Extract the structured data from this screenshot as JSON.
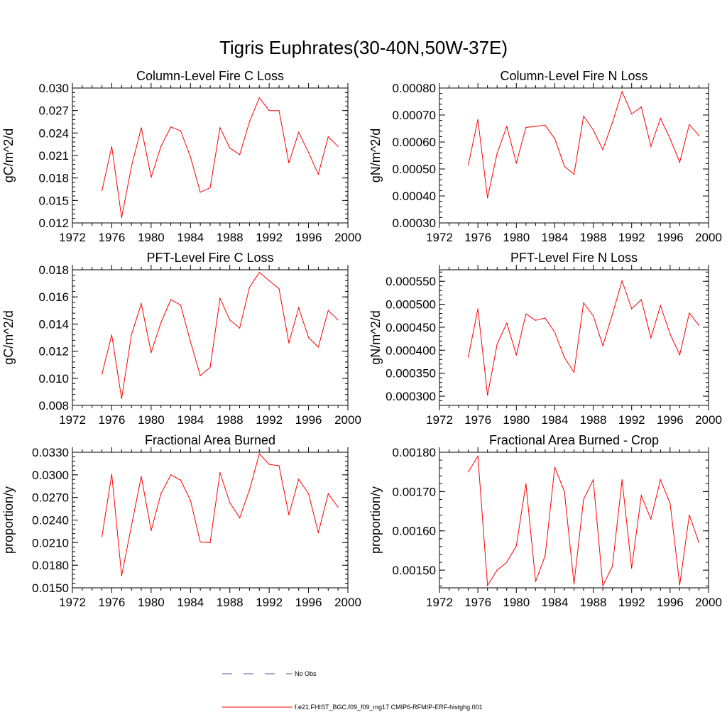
{
  "figure": {
    "title": "Tigris Euphrates(30-40N,50W-37E)",
    "line_color": "#ff0000",
    "obs_color": "#5555aa"
  },
  "legend": {
    "obs_label": "No Obs",
    "model_label": "f.e21.FHIST_BGC.f09_f09_mg17.CMIP6-RFMIP-ERF-histghg.001"
  },
  "chart_data": [
    {
      "type": "line",
      "title": "Column-Level Fire C Loss",
      "ylabel": "gC/m^2/d",
      "xlim": [
        1972,
        2000
      ],
      "xticks": [
        "1972",
        "1976",
        "1980",
        "1984",
        "1988",
        "1992",
        "1996",
        "2000"
      ],
      "ylim": [
        0.012,
        0.03
      ],
      "yticks": [
        "0.012",
        "0.015",
        "0.018",
        "0.021",
        "0.024",
        "0.027",
        "0.030"
      ],
      "x": [
        1975,
        1976,
        1977,
        1978,
        1979,
        1980,
        1981,
        1982,
        1983,
        1984,
        1985,
        1986,
        1987,
        1988,
        1989,
        1990,
        1991,
        1992,
        1993,
        1994,
        1995,
        1996,
        1997,
        1998,
        1999
      ],
      "values": [
        0.0163,
        0.0222,
        0.0127,
        0.0195,
        0.0247,
        0.0181,
        0.0222,
        0.0248,
        0.0243,
        0.0208,
        0.0161,
        0.0167,
        0.0247,
        0.022,
        0.0211,
        0.0255,
        0.0287,
        0.027,
        0.027,
        0.02,
        0.0241,
        0.0214,
        0.0185,
        0.0235,
        0.0222
      ]
    },
    {
      "type": "line",
      "title": "Column-Level Fire N Loss",
      "ylabel": "gN/m^2/d",
      "xlim": [
        1972,
        2000
      ],
      "xticks": [
        "1972",
        "1976",
        "1980",
        "1984",
        "1988",
        "1992",
        "1996",
        "2000"
      ],
      "ylim": [
        0.0003,
        0.0008
      ],
      "yticks": [
        "0.00030",
        "0.00040",
        "0.00050",
        "0.00060",
        "0.00070",
        "0.00080"
      ],
      "x": [
        1975,
        1976,
        1977,
        1978,
        1979,
        1980,
        1981,
        1982,
        1983,
        1984,
        1985,
        1986,
        1987,
        1988,
        1989,
        1990,
        1991,
        1992,
        1993,
        1994,
        1995,
        1996,
        1997,
        1998,
        1999
      ],
      "values": [
        0.000515,
        0.000683,
        0.000393,
        0.000558,
        0.000657,
        0.000522,
        0.000654,
        0.000658,
        0.000662,
        0.000612,
        0.00051,
        0.00048,
        0.000696,
        0.000645,
        0.000571,
        0.000672,
        0.000787,
        0.000704,
        0.00073,
        0.000584,
        0.000688,
        0.000612,
        0.000525,
        0.000665,
        0.000624
      ]
    },
    {
      "type": "line",
      "title": "PFT-Level Fire C Loss",
      "ylabel": "gC/m^2/d",
      "xlim": [
        1972,
        2000
      ],
      "xticks": [
        "1972",
        "1976",
        "1980",
        "1984",
        "1988",
        "1992",
        "1996",
        "2000"
      ],
      "ylim": [
        0.008,
        0.018
      ],
      "yticks": [
        "0.008",
        "0.010",
        "0.012",
        "0.014",
        "0.016",
        "0.018"
      ],
      "x": [
        1975,
        1976,
        1977,
        1978,
        1979,
        1980,
        1981,
        1982,
        1983,
        1984,
        1985,
        1986,
        1987,
        1988,
        1989,
        1990,
        1991,
        1992,
        1993,
        1994,
        1995,
        1996,
        1997,
        1998,
        1999
      ],
      "values": [
        0.0103,
        0.0132,
        0.0085,
        0.0132,
        0.0155,
        0.0119,
        0.0141,
        0.0158,
        0.0154,
        0.0127,
        0.0102,
        0.0108,
        0.0159,
        0.0143,
        0.0137,
        0.0167,
        0.0178,
        0.0172,
        0.0166,
        0.0126,
        0.0152,
        0.013,
        0.0123,
        0.015,
        0.0143
      ]
    },
    {
      "type": "line",
      "title": "PFT-Level Fire N Loss",
      "ylabel": "gN/m^2/d",
      "xlim": [
        1972,
        2000
      ],
      "xticks": [
        "1972",
        "1976",
        "1980",
        "1984",
        "1988",
        "1992",
        "1996",
        "2000"
      ],
      "ylim": [
        0.00028,
        0.000575
      ],
      "yticks": [
        "0.000300",
        "0.000350",
        "0.000400",
        "0.000450",
        "0.000500",
        "0.000550"
      ],
      "x": [
        1975,
        1976,
        1977,
        1978,
        1979,
        1980,
        1981,
        1982,
        1983,
        1984,
        1985,
        1986,
        1987,
        1988,
        1989,
        1990,
        1991,
        1992,
        1993,
        1994,
        1995,
        1996,
        1997,
        1998,
        1999
      ],
      "values": [
        0.000385,
        0.00049,
        0.000302,
        0.000413,
        0.000459,
        0.00039,
        0.000479,
        0.000465,
        0.00047,
        0.000439,
        0.000384,
        0.000352,
        0.000503,
        0.000475,
        0.00041,
        0.000478,
        0.000551,
        0.00049,
        0.00051,
        0.000427,
        0.000497,
        0.000435,
        0.00039,
        0.000481,
        0.000454
      ]
    },
    {
      "type": "line",
      "title": "Fractional Area Burned",
      "ylabel": "proportion/y",
      "xlim": [
        1972,
        2000
      ],
      "xticks": [
        "1972",
        "1976",
        "1980",
        "1984",
        "1988",
        "1992",
        "1996",
        "2000"
      ],
      "ylim": [
        0.015,
        0.033
      ],
      "yticks": [
        "0.0150",
        "0.0180",
        "0.0210",
        "0.0240",
        "0.0270",
        "0.0300",
        "0.0330"
      ],
      "x": [
        1975,
        1976,
        1977,
        1978,
        1979,
        1980,
        1981,
        1982,
        1983,
        1984,
        1985,
        1986,
        1987,
        1988,
        1989,
        1990,
        1991,
        1992,
        1993,
        1994,
        1995,
        1996,
        1997,
        1998,
        1999
      ],
      "values": [
        0.0218,
        0.0301,
        0.0166,
        0.0232,
        0.0298,
        0.0226,
        0.0275,
        0.03,
        0.0293,
        0.0266,
        0.0211,
        0.021,
        0.0303,
        0.0263,
        0.0243,
        0.028,
        0.0328,
        0.0314,
        0.0312,
        0.0247,
        0.0294,
        0.0275,
        0.0223,
        0.0275,
        0.0257
      ]
    },
    {
      "type": "line",
      "title": "Fractional Area Burned - Crop",
      "ylabel": "proportion/y",
      "xlim": [
        1972,
        2000
      ],
      "xticks": [
        "1972",
        "1976",
        "1980",
        "1984",
        "1988",
        "1992",
        "1996",
        "2000"
      ],
      "ylim": [
        0.001455,
        0.0018
      ],
      "yticks": [
        "0.00150",
        "0.00160",
        "0.00170",
        "0.00180"
      ],
      "x": [
        1975,
        1976,
        1977,
        1978,
        1979,
        1980,
        1981,
        1982,
        1983,
        1984,
        1985,
        1986,
        1987,
        1988,
        1989,
        1990,
        1991,
        1992,
        1993,
        1994,
        1995,
        1996,
        1997,
        1998,
        1999
      ],
      "values": [
        0.00175,
        0.00179,
        0.001461,
        0.0015,
        0.00152,
        0.001562,
        0.00172,
        0.001471,
        0.001537,
        0.001762,
        0.0017,
        0.001465,
        0.00168,
        0.00173,
        0.00146,
        0.00151,
        0.00173,
        0.001505,
        0.00169,
        0.00163,
        0.00173,
        0.00167,
        0.001462,
        0.00164,
        0.00157
      ]
    }
  ]
}
